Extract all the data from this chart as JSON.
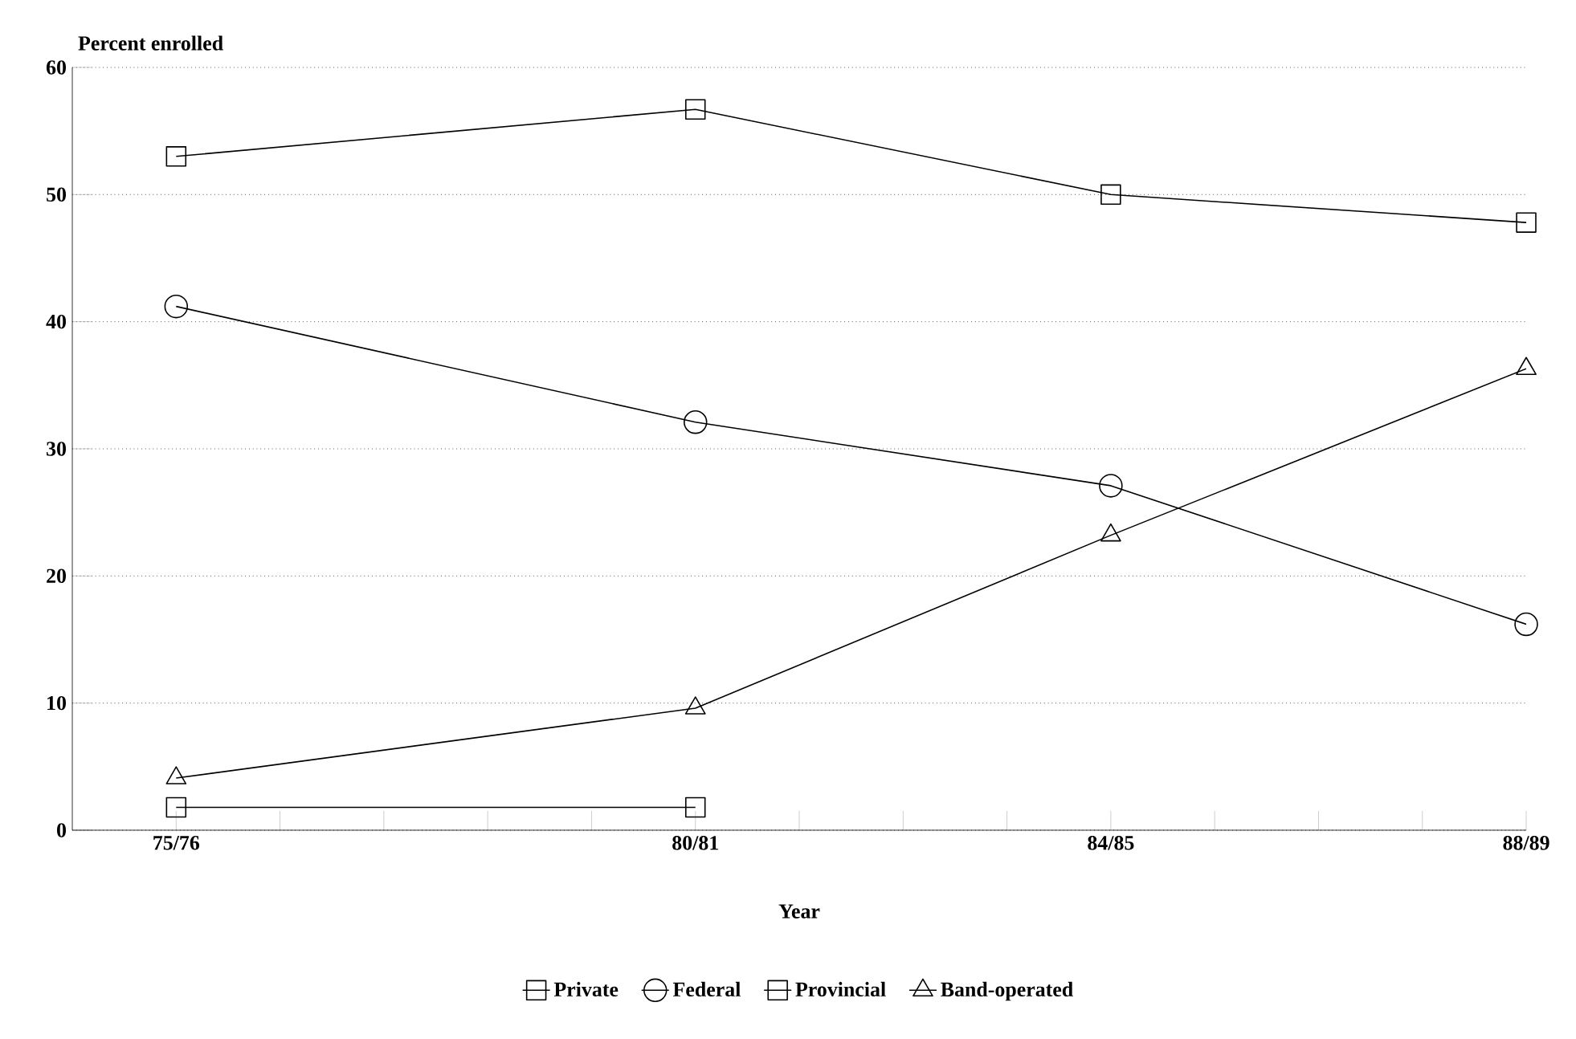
{
  "chart_data": {
    "type": "line",
    "xlabel": "Year",
    "ylabel": "Percent enrolled",
    "categories": [
      "75/76",
      null,
      null,
      null,
      null,
      "80/81",
      null,
      null,
      null,
      "84/85",
      null,
      null,
      null,
      "88/89"
    ],
    "series": [
      {
        "name": "Private",
        "color": "#000000",
        "marker": "square",
        "values": [
          1.8,
          null,
          null,
          null,
          null,
          1.8,
          null,
          null,
          null,
          null,
          null,
          null,
          null,
          null
        ]
      },
      {
        "name": "Federal",
        "color": "#000000",
        "marker": "circle",
        "values": [
          41.2,
          null,
          null,
          null,
          null,
          32.1,
          null,
          null,
          null,
          27.1,
          null,
          null,
          null,
          16.2
        ]
      },
      {
        "name": "Provincial",
        "color": "#000000",
        "marker": "square",
        "values": [
          53,
          null,
          null,
          null,
          null,
          56.7,
          null,
          null,
          null,
          50,
          null,
          null,
          null,
          47.8
        ]
      },
      {
        "name": "Band-operated",
        "color": "#000000",
        "marker": "triangle",
        "values": [
          4.1,
          null,
          null,
          null,
          null,
          9.6,
          null,
          null,
          null,
          23.2,
          null,
          null,
          null,
          36.3
        ]
      }
    ],
    "ylim": [
      0,
      60
    ],
    "yticks": [
      0,
      10,
      20,
      30,
      40,
      50,
      60
    ],
    "grid": "y",
    "legend": "bottom",
    "line_style": "solid"
  }
}
